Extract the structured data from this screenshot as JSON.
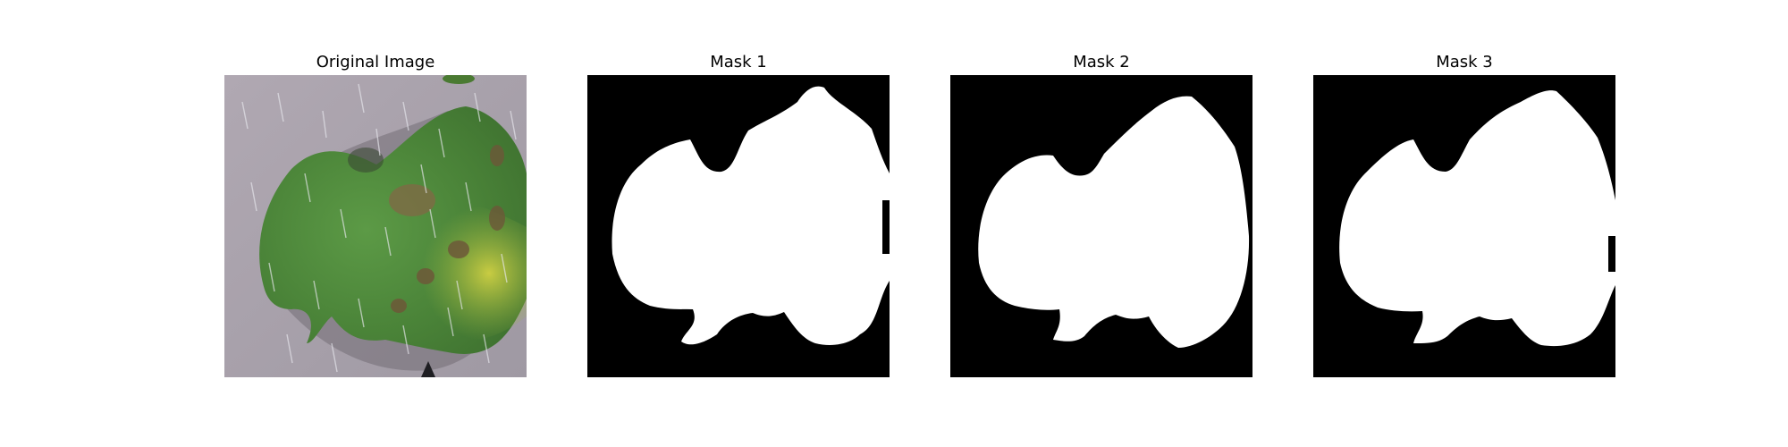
{
  "figure": {
    "panels": [
      {
        "title": "Original Image"
      },
      {
        "title": "Mask 1"
      },
      {
        "title": "Mask 2"
      },
      {
        "title": "Mask 3"
      }
    ],
    "colors": {
      "background_mask": "#000000",
      "foreground_mask": "#ffffff",
      "leaf_green": "#4f8a3c",
      "leaf_yellow": "#c6c83a",
      "lesion_brown": "#7a5a3a",
      "backdrop_gray": "#a9a2aa"
    }
  }
}
